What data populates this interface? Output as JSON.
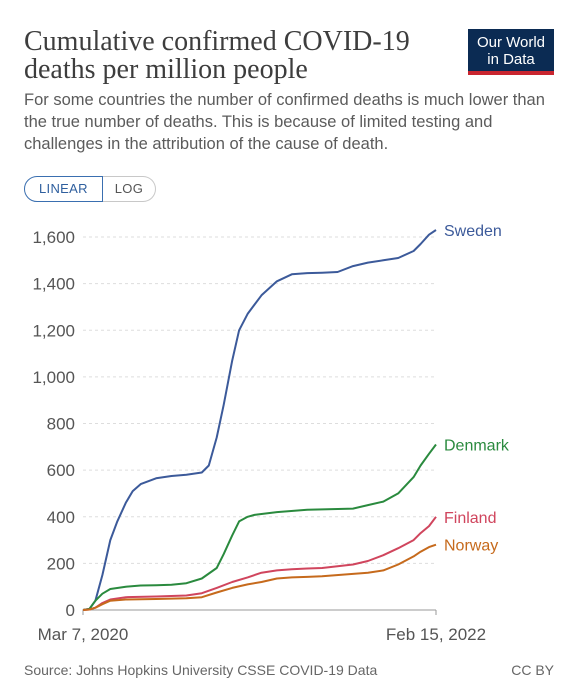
{
  "header": {
    "title": "Cumulative confirmed COVID-19 deaths per million people",
    "subtitle": "For some countries the number of confirmed deaths is much lower than the true number of deaths. This is because of limited testing and challenges in the attribution of the cause of death.",
    "logo_line1": "Our World",
    "logo_line2": "in Data"
  },
  "scale_toggle": {
    "linear_label": "LINEAR",
    "log_label": "LOG",
    "selected": "LINEAR"
  },
  "footer": {
    "source": "Source: Johns Hopkins University CSSE COVID-19 Data",
    "license": "CC BY"
  },
  "colors": {
    "Sweden": "#3c5a9a",
    "Denmark": "#2a8a3e",
    "Finland": "#d0455d",
    "Norway": "#c66a1c",
    "grid": "#dddddd",
    "axis_text": "#555555"
  },
  "chart_data": {
    "type": "line",
    "title": "Cumulative confirmed COVID-19 deaths per million people",
    "xlabel": "",
    "ylabel": "",
    "xlim": [
      "2020-03-07",
      "2022-02-15"
    ],
    "ylim": [
      0,
      1600
    ],
    "yticks": [
      0,
      200,
      400,
      600,
      800,
      1000,
      1200,
      1400,
      1600
    ],
    "ytick_labels": [
      "0",
      "200",
      "400",
      "600",
      "800",
      "1,000",
      "1,200",
      "1,400",
      "1,600"
    ],
    "xtick_labels": [
      "Mar 7, 2020",
      "Feb 15, 2022"
    ],
    "xticks": [
      "2020-03-07",
      "2022-02-15"
    ],
    "grid": "horizontal dashed",
    "legend": "labels at line ends (right)",
    "series": [
      {
        "name": "Sweden",
        "x": [
          "2020-03-07",
          "2020-03-20",
          "2020-04-01",
          "2020-04-15",
          "2020-05-01",
          "2020-05-15",
          "2020-06-01",
          "2020-06-15",
          "2020-07-01",
          "2020-08-01",
          "2020-09-01",
          "2020-10-01",
          "2020-11-01",
          "2020-11-15",
          "2020-12-01",
          "2020-12-15",
          "2021-01-01",
          "2021-01-15",
          "2021-02-01",
          "2021-02-15",
          "2021-03-01",
          "2021-04-01",
          "2021-05-01",
          "2021-06-01",
          "2021-07-01",
          "2021-08-01",
          "2021-09-01",
          "2021-10-01",
          "2021-11-01",
          "2021-12-01",
          "2022-01-01",
          "2022-01-15",
          "2022-02-01",
          "2022-02-15"
        ],
        "y": [
          0,
          5,
          40,
          150,
          300,
          380,
          460,
          510,
          540,
          565,
          575,
          580,
          590,
          620,
          740,
          880,
          1070,
          1200,
          1270,
          1310,
          1350,
          1410,
          1440,
          1445,
          1447,
          1450,
          1475,
          1490,
          1500,
          1510,
          1540,
          1570,
          1610,
          1630
        ]
      },
      {
        "name": "Denmark",
        "x": [
          "2020-03-07",
          "2020-03-20",
          "2020-04-01",
          "2020-04-15",
          "2020-05-01",
          "2020-06-01",
          "2020-07-01",
          "2020-08-01",
          "2020-09-01",
          "2020-10-01",
          "2020-11-01",
          "2020-12-01",
          "2020-12-15",
          "2021-01-01",
          "2021-01-15",
          "2021-02-01",
          "2021-02-15",
          "2021-03-01",
          "2021-04-01",
          "2021-06-01",
          "2021-09-01",
          "2021-10-01",
          "2021-11-01",
          "2021-12-01",
          "2022-01-01",
          "2022-01-15",
          "2022-02-01",
          "2022-02-15"
        ],
        "y": [
          0,
          5,
          40,
          70,
          90,
          100,
          105,
          106,
          108,
          115,
          135,
          180,
          240,
          320,
          380,
          400,
          408,
          412,
          420,
          430,
          435,
          450,
          465,
          500,
          570,
          620,
          670,
          710
        ]
      },
      {
        "name": "Finland",
        "x": [
          "2020-03-07",
          "2020-03-20",
          "2020-04-01",
          "2020-04-15",
          "2020-05-01",
          "2020-06-01",
          "2020-08-01",
          "2020-10-01",
          "2020-11-01",
          "2020-12-01",
          "2021-01-01",
          "2021-02-01",
          "2021-03-01",
          "2021-04-01",
          "2021-05-01",
          "2021-06-01",
          "2021-07-01",
          "2021-09-01",
          "2021-10-01",
          "2021-11-01",
          "2021-12-01",
          "2022-01-01",
          "2022-01-15",
          "2022-02-01",
          "2022-02-15"
        ],
        "y": [
          0,
          2,
          10,
          30,
          45,
          55,
          58,
          62,
          72,
          95,
          120,
          140,
          160,
          170,
          175,
          178,
          180,
          195,
          210,
          235,
          265,
          300,
          330,
          360,
          400
        ]
      },
      {
        "name": "Norway",
        "x": [
          "2020-03-07",
          "2020-03-20",
          "2020-04-01",
          "2020-04-15",
          "2020-05-01",
          "2020-06-01",
          "2020-08-01",
          "2020-10-01",
          "2020-11-01",
          "2020-12-01",
          "2021-01-01",
          "2021-02-01",
          "2021-03-01",
          "2021-04-01",
          "2021-05-01",
          "2021-06-01",
          "2021-07-01",
          "2021-09-01",
          "2021-10-01",
          "2021-11-01",
          "2021-12-01",
          "2022-01-01",
          "2022-01-15",
          "2022-02-01",
          "2022-02-15"
        ],
        "y": [
          0,
          2,
          10,
          25,
          40,
          45,
          47,
          50,
          55,
          75,
          95,
          110,
          120,
          135,
          140,
          142,
          145,
          155,
          160,
          170,
          195,
          230,
          250,
          270,
          280
        ]
      }
    ]
  }
}
